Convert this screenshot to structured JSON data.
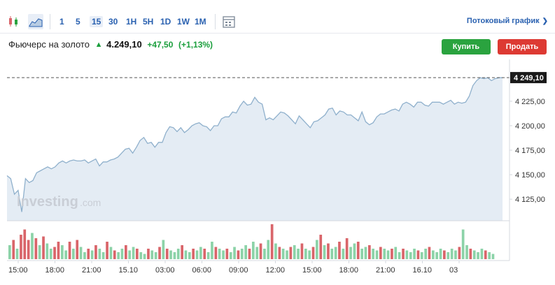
{
  "toolbar": {
    "icons": [
      "candlestick-icon",
      "area-chart-icon",
      "calendar-icon"
    ],
    "timeframes": [
      {
        "label": "1",
        "active": false
      },
      {
        "label": "5",
        "active": false
      },
      {
        "label": "15",
        "active": true
      },
      {
        "label": "30",
        "active": false
      },
      {
        "label": "1H",
        "active": false
      },
      {
        "label": "5H",
        "active": false
      },
      {
        "label": "1D",
        "active": false
      },
      {
        "label": "1W",
        "active": false
      },
      {
        "label": "1M",
        "active": false
      }
    ],
    "streaming_label": "Потоковый график"
  },
  "instrument": {
    "name": "Фьючерс на золото",
    "price": "4.249,10",
    "change": "+47,50",
    "change_pct": "(+1,13%)",
    "direction_icon": "arrow-up-icon"
  },
  "actions": {
    "buy_label": "Купить",
    "sell_label": "Продать"
  },
  "chart_data": {
    "type": "area",
    "last_price_label": "4 249,10",
    "last_price": 4249.1,
    "y_ticks": [
      "4 225,00",
      "4 200,00",
      "4 175,00",
      "4 150,00",
      "4 125,00"
    ],
    "y_tick_values": [
      4225,
      4200,
      4175,
      4150,
      4125
    ],
    "ylim": [
      4103,
      4262
    ],
    "x_ticks": [
      "15:00",
      "18:00",
      "21:00",
      "15.10",
      "03:00",
      "06:00",
      "09:00",
      "12:00",
      "15:00",
      "18:00",
      "21:00",
      "16.10",
      "03"
    ],
    "watermark": "Investing",
    "watermark_suffix": ".com",
    "colors": {
      "line": "#8fb0cc",
      "fill": "#e4ecf4",
      "volume_up": "#8cd3a8",
      "volume_down": "#d9656a",
      "price_tag": "#1a1a1a"
    },
    "price_series": [
      4149,
      4146,
      4130,
      4134,
      4112,
      4146,
      4142,
      4144,
      4152,
      4154,
      4156,
      4158,
      4156,
      4158,
      4162,
      4164,
      4162,
      4164,
      4165,
      4164,
      4164,
      4165,
      4162,
      4164,
      4166,
      4159,
      4163,
      4163,
      4165,
      4166,
      4168,
      4172,
      4176,
      4177,
      4172,
      4178,
      4185,
      4188,
      4182,
      4183,
      4178,
      4183,
      4183,
      4193,
      4199,
      4198,
      4194,
      4198,
      4193,
      4196,
      4200,
      4202,
      4203,
      4200,
      4199,
      4195,
      4200,
      4200,
      4207,
      4209,
      4209,
      4214,
      4213,
      4220,
      4225,
      4221,
      4222,
      4229,
      4224,
      4222,
      4206,
      4208,
      4206,
      4210,
      4214,
      4213,
      4210,
      4206,
      4202,
      4210,
      4206,
      4202,
      4198,
      4204,
      4205,
      4208,
      4211,
      4217,
      4218,
      4211,
      4215,
      4214,
      4211,
      4211,
      4208,
      4205,
      4214,
      4204,
      4201,
      4203,
      4209,
      4212,
      4212,
      4214,
      4216,
      4217,
      4215,
      4222,
      4224,
      4222,
      4219,
      4224,
      4224,
      4221,
      4220,
      4224,
      4224,
      4224,
      4222,
      4224,
      4226,
      4222,
      4224,
      4223,
      4224,
      4230,
      4241,
      4246,
      4249,
      4248,
      4249,
      4246,
      4248,
      4249,
      4249
    ],
    "volume_series": [
      {
        "v": 0.4,
        "d": "up"
      },
      {
        "v": 0.55,
        "d": "down"
      },
      {
        "v": 0.3,
        "d": "up"
      },
      {
        "v": 0.7,
        "d": "down"
      },
      {
        "v": 0.85,
        "d": "down"
      },
      {
        "v": 0.55,
        "d": "down"
      },
      {
        "v": 0.75,
        "d": "up"
      },
      {
        "v": 0.6,
        "d": "down"
      },
      {
        "v": 0.4,
        "d": "up"
      },
      {
        "v": 0.65,
        "d": "down"
      },
      {
        "v": 0.45,
        "d": "up"
      },
      {
        "v": 0.3,
        "d": "up"
      },
      {
        "v": 0.35,
        "d": "down"
      },
      {
        "v": 0.5,
        "d": "down"
      },
      {
        "v": 0.4,
        "d": "up"
      },
      {
        "v": 0.25,
        "d": "up"
      },
      {
        "v": 0.5,
        "d": "down"
      },
      {
        "v": 0.3,
        "d": "up"
      },
      {
        "v": 0.55,
        "d": "down"
      },
      {
        "v": 0.35,
        "d": "up"
      },
      {
        "v": 0.2,
        "d": "up"
      },
      {
        "v": 0.3,
        "d": "down"
      },
      {
        "v": 0.25,
        "d": "up"
      },
      {
        "v": 0.4,
        "d": "down"
      },
      {
        "v": 0.3,
        "d": "up"
      },
      {
        "v": 0.2,
        "d": "up"
      },
      {
        "v": 0.5,
        "d": "down"
      },
      {
        "v": 0.35,
        "d": "up"
      },
      {
        "v": 0.25,
        "d": "down"
      },
      {
        "v": 0.2,
        "d": "up"
      },
      {
        "v": 0.3,
        "d": "up"
      },
      {
        "v": 0.4,
        "d": "down"
      },
      {
        "v": 0.25,
        "d": "up"
      },
      {
        "v": 0.35,
        "d": "up"
      },
      {
        "v": 0.3,
        "d": "down"
      },
      {
        "v": 0.2,
        "d": "up"
      },
      {
        "v": 0.15,
        "d": "up"
      },
      {
        "v": 0.3,
        "d": "down"
      },
      {
        "v": 0.25,
        "d": "up"
      },
      {
        "v": 0.2,
        "d": "up"
      },
      {
        "v": 0.35,
        "d": "down"
      },
      {
        "v": 0.55,
        "d": "up"
      },
      {
        "v": 0.3,
        "d": "down"
      },
      {
        "v": 0.25,
        "d": "up"
      },
      {
        "v": 0.2,
        "d": "up"
      },
      {
        "v": 0.3,
        "d": "up"
      },
      {
        "v": 0.4,
        "d": "down"
      },
      {
        "v": 0.25,
        "d": "up"
      },
      {
        "v": 0.2,
        "d": "up"
      },
      {
        "v": 0.3,
        "d": "down"
      },
      {
        "v": 0.25,
        "d": "up"
      },
      {
        "v": 0.35,
        "d": "up"
      },
      {
        "v": 0.3,
        "d": "down"
      },
      {
        "v": 0.2,
        "d": "up"
      },
      {
        "v": 0.5,
        "d": "up"
      },
      {
        "v": 0.35,
        "d": "down"
      },
      {
        "v": 0.3,
        "d": "up"
      },
      {
        "v": 0.25,
        "d": "up"
      },
      {
        "v": 0.3,
        "d": "down"
      },
      {
        "v": 0.2,
        "d": "up"
      },
      {
        "v": 0.35,
        "d": "up"
      },
      {
        "v": 0.25,
        "d": "down"
      },
      {
        "v": 0.3,
        "d": "up"
      },
      {
        "v": 0.4,
        "d": "up"
      },
      {
        "v": 0.3,
        "d": "down"
      },
      {
        "v": 0.5,
        "d": "up"
      },
      {
        "v": 0.35,
        "d": "up"
      },
      {
        "v": 0.45,
        "d": "down"
      },
      {
        "v": 0.3,
        "d": "up"
      },
      {
        "v": 0.55,
        "d": "up"
      },
      {
        "v": 1.0,
        "d": "down"
      },
      {
        "v": 0.45,
        "d": "up"
      },
      {
        "v": 0.35,
        "d": "down"
      },
      {
        "v": 0.3,
        "d": "up"
      },
      {
        "v": 0.25,
        "d": "up"
      },
      {
        "v": 0.35,
        "d": "down"
      },
      {
        "v": 0.4,
        "d": "up"
      },
      {
        "v": 0.3,
        "d": "up"
      },
      {
        "v": 0.45,
        "d": "down"
      },
      {
        "v": 0.3,
        "d": "up"
      },
      {
        "v": 0.25,
        "d": "up"
      },
      {
        "v": 0.35,
        "d": "down"
      },
      {
        "v": 0.55,
        "d": "up"
      },
      {
        "v": 0.7,
        "d": "down"
      },
      {
        "v": 0.4,
        "d": "up"
      },
      {
        "v": 0.45,
        "d": "down"
      },
      {
        "v": 0.3,
        "d": "up"
      },
      {
        "v": 0.35,
        "d": "up"
      },
      {
        "v": 0.5,
        "d": "down"
      },
      {
        "v": 0.3,
        "d": "up"
      },
      {
        "v": 0.6,
        "d": "down"
      },
      {
        "v": 0.35,
        "d": "up"
      },
      {
        "v": 0.45,
        "d": "up"
      },
      {
        "v": 0.5,
        "d": "down"
      },
      {
        "v": 0.3,
        "d": "up"
      },
      {
        "v": 0.35,
        "d": "up"
      },
      {
        "v": 0.4,
        "d": "down"
      },
      {
        "v": 0.3,
        "d": "up"
      },
      {
        "v": 0.25,
        "d": "up"
      },
      {
        "v": 0.35,
        "d": "down"
      },
      {
        "v": 0.3,
        "d": "up"
      },
      {
        "v": 0.25,
        "d": "up"
      },
      {
        "v": 0.3,
        "d": "down"
      },
      {
        "v": 0.35,
        "d": "up"
      },
      {
        "v": 0.2,
        "d": "up"
      },
      {
        "v": 0.3,
        "d": "down"
      },
      {
        "v": 0.25,
        "d": "up"
      },
      {
        "v": 0.2,
        "d": "up"
      },
      {
        "v": 0.3,
        "d": "up"
      },
      {
        "v": 0.25,
        "d": "down"
      },
      {
        "v": 0.2,
        "d": "up"
      },
      {
        "v": 0.3,
        "d": "up"
      },
      {
        "v": 0.35,
        "d": "down"
      },
      {
        "v": 0.25,
        "d": "up"
      },
      {
        "v": 0.2,
        "d": "up"
      },
      {
        "v": 0.3,
        "d": "up"
      },
      {
        "v": 0.25,
        "d": "down"
      },
      {
        "v": 0.2,
        "d": "up"
      },
      {
        "v": 0.3,
        "d": "up"
      },
      {
        "v": 0.25,
        "d": "up"
      },
      {
        "v": 0.35,
        "d": "down"
      },
      {
        "v": 0.85,
        "d": "up"
      },
      {
        "v": 0.4,
        "d": "up"
      },
      {
        "v": 0.3,
        "d": "down"
      },
      {
        "v": 0.25,
        "d": "up"
      },
      {
        "v": 0.2,
        "d": "up"
      },
      {
        "v": 0.3,
        "d": "up"
      },
      {
        "v": 0.25,
        "d": "down"
      },
      {
        "v": 0.2,
        "d": "up"
      },
      {
        "v": 0.15,
        "d": "up"
      }
    ]
  }
}
